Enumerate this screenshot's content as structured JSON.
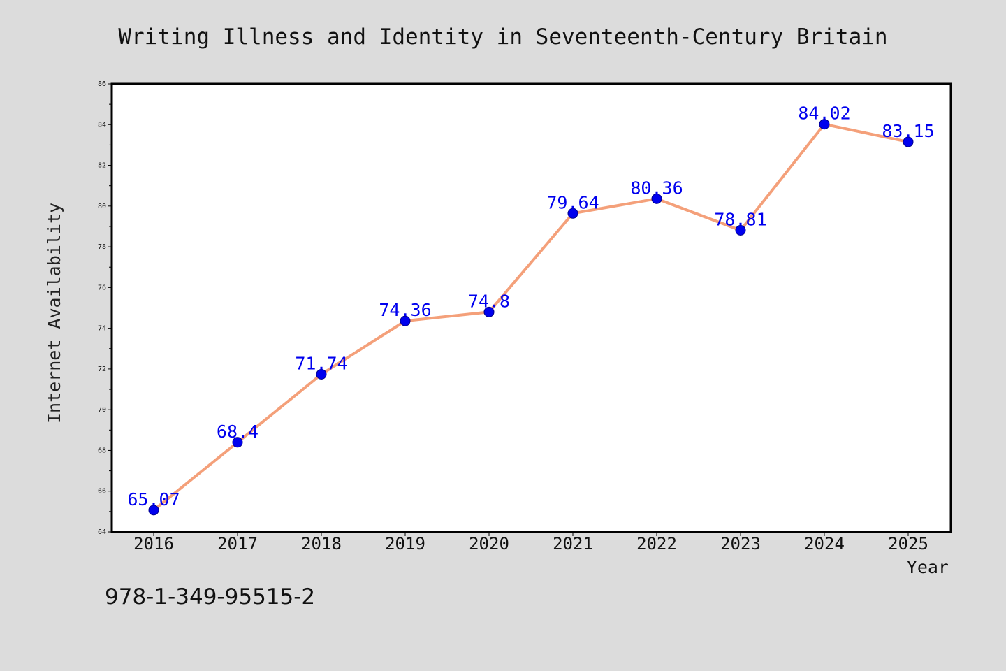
{
  "chart_data": {
    "type": "line",
    "title": "Writing Illness and Identity in Seventeenth-Century Britain",
    "xlabel": "Year",
    "ylabel": "Internet Availability",
    "categories": [
      "2016",
      "2017",
      "2018",
      "2019",
      "2020",
      "2021",
      "2022",
      "2023",
      "2024",
      "2025"
    ],
    "series": [
      {
        "values": [
          65.07,
          68.4,
          71.74,
          74.36,
          74.8,
          79.64,
          80.36,
          78.81,
          84.02,
          83.15
        ],
        "labels": [
          "65.07",
          "68.4",
          "71.74",
          "74.36",
          "74.8",
          "79.64",
          "80.36",
          "78.81",
          "84.02",
          "83.15"
        ]
      }
    ],
    "ylim": [
      64,
      86
    ],
    "yticks": [
      "64",
      "66",
      "68",
      "70",
      "72",
      "74",
      "76",
      "78",
      "80",
      "82",
      "84",
      "86"
    ],
    "grid": false,
    "line_color": "#f4a07a",
    "marker_color": "#0000ee",
    "label_color": "#0000ee",
    "background": "#dcdcdc",
    "plot_background": "#ffffff"
  },
  "footer": {
    "isbn": "978-1-349-95515-2"
  }
}
